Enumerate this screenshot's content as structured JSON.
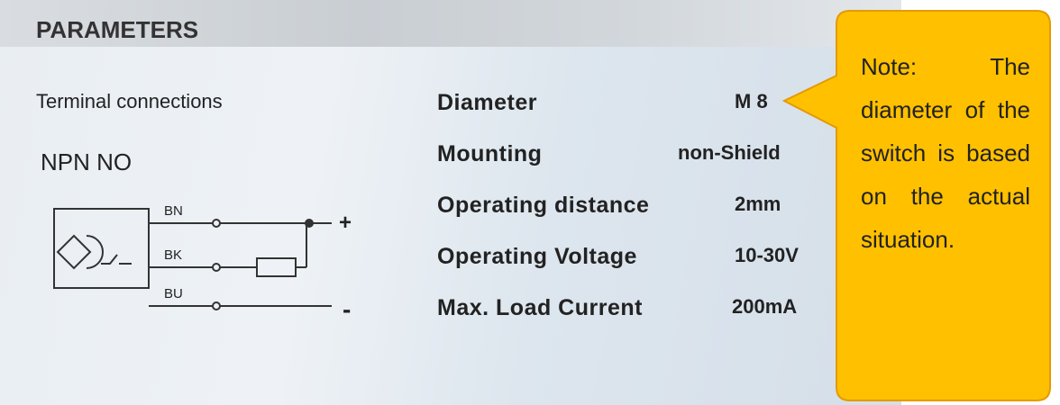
{
  "header": {
    "title": "PARAMETERS"
  },
  "wiring": {
    "title": "Terminal connections",
    "type": "NPN NO",
    "wires": [
      "BN",
      "BK",
      "BU"
    ],
    "plus": "+",
    "minus": "-"
  },
  "parameters": [
    {
      "label": "Diameter",
      "value": "M 8"
    },
    {
      "label": "Mounting",
      "value": "non-Shield"
    },
    {
      "label": "Operating distance",
      "value": "2mm"
    },
    {
      "label": "Operating Voltage",
      "value": "10-30V"
    },
    {
      "label": "Max. Load Current",
      "value": "200mA"
    }
  ],
  "note": {
    "text": "Note: The diameter of the switch is based on the actual situation."
  }
}
